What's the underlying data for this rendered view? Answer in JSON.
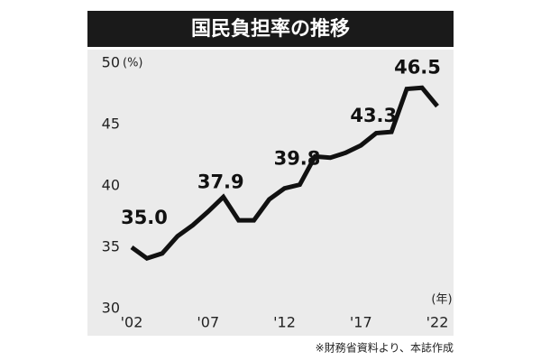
{
  "chart_data": {
    "type": "line",
    "title": "国民負担率の推移",
    "categories": [
      "'02",
      null,
      null,
      null,
      null,
      "'07",
      null,
      null,
      null,
      null,
      "'12",
      null,
      null,
      null,
      null,
      "'17",
      null,
      null,
      null,
      null,
      "'22"
    ],
    "series": [
      {
        "color": "#111111",
        "values": [
          35.0,
          34.1,
          34.5,
          35.9,
          36.8,
          37.9,
          39.1,
          37.2,
          37.2,
          38.9,
          39.8,
          40.1,
          42.4,
          42.3,
          42.7,
          43.3,
          44.3,
          44.4,
          47.9,
          48.0,
          46.5
        ],
        "value_labels": [
          "35.0",
          null,
          null,
          null,
          null,
          "37.9",
          null,
          null,
          null,
          null,
          "39.8",
          null,
          null,
          null,
          null,
          "43.3",
          null,
          null,
          null,
          null,
          "46.5"
        ]
      }
    ],
    "ylim": [
      30,
      50
    ],
    "yticks": [
      30,
      35,
      40,
      45,
      50
    ],
    "y_unit": "(%)",
    "x_unit": "(年)",
    "source": "※財務省資料より、本誌作成"
  }
}
